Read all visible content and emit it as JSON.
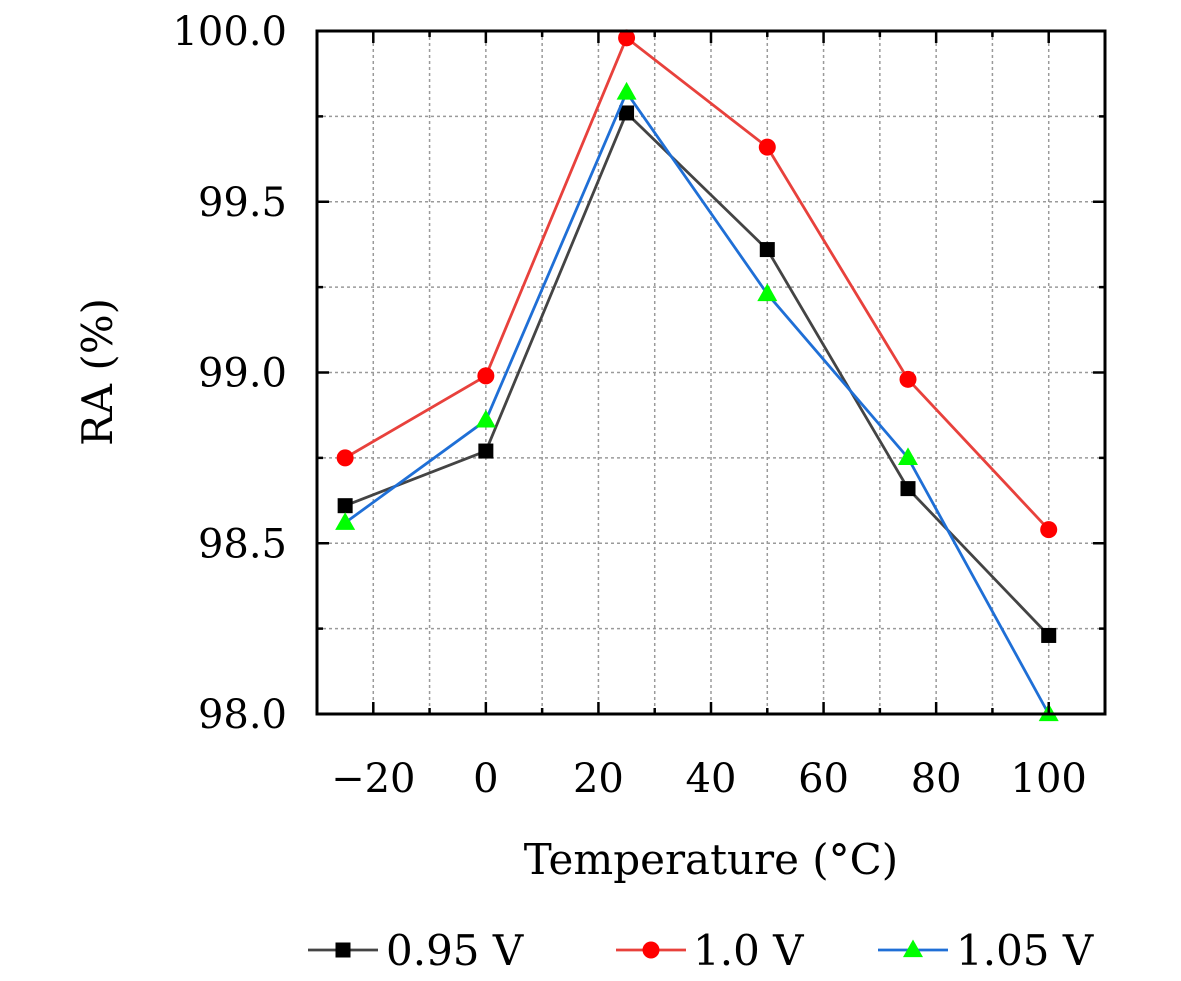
{
  "chart_data": {
    "type": "line",
    "title": "",
    "xlabel": "Temperature (°C)",
    "ylabel": "RA (%)",
    "x": [
      -25,
      0,
      25,
      50,
      75,
      100
    ],
    "xlim": [
      -30,
      110
    ],
    "ylim": [
      98.0,
      100.0
    ],
    "xticks": [
      -20,
      0,
      20,
      40,
      60,
      80,
      100
    ],
    "xtick_labels": [
      "−20",
      "0",
      "20",
      "40",
      "60",
      "80",
      "100"
    ],
    "yticks": [
      98.0,
      98.5,
      99.0,
      99.5,
      100.0
    ],
    "ytick_labels": [
      "98.0",
      "98.5",
      "99.0",
      "99.5",
      "100.0"
    ],
    "grid": true,
    "legend_position": "bottom",
    "series": [
      {
        "name": "0.95 V",
        "values": [
          98.61,
          98.77,
          99.76,
          99.36,
          98.66,
          98.23
        ],
        "color": "#444444",
        "marker_color": "#000000",
        "marker": "square"
      },
      {
        "name": "1.0 V",
        "values": [
          98.75,
          98.99,
          99.98,
          99.66,
          98.98,
          98.54
        ],
        "color": "#e8413c",
        "marker_color": "#ff0000",
        "marker": "circle"
      },
      {
        "name": "1.05 V",
        "values": [
          98.56,
          98.86,
          99.82,
          99.23,
          98.75,
          98.0
        ],
        "color": "#1f6fd6",
        "marker_color": "#00ff00",
        "marker": "triangle"
      }
    ]
  }
}
